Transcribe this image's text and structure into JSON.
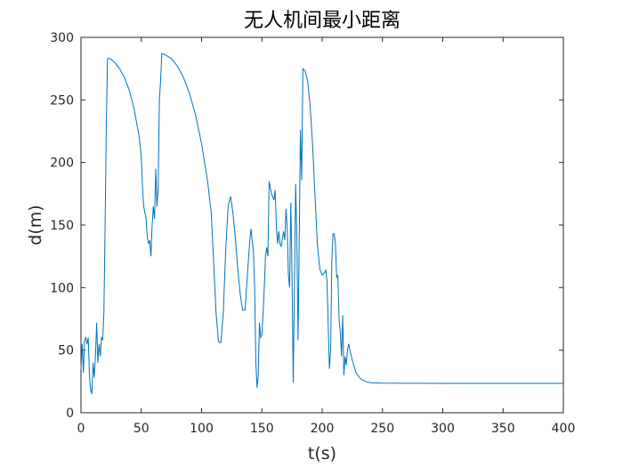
{
  "chart_data": {
    "type": "line",
    "title": "无人机间最小距离",
    "x_label": "t(s)",
    "y_label": "d(m)",
    "x": [
      0,
      1,
      2,
      3,
      4,
      5,
      6,
      7,
      8,
      9,
      10,
      11,
      12,
      13,
      14,
      15,
      16,
      17,
      18,
      19,
      20,
      21,
      22,
      24,
      28,
      32,
      36,
      40,
      44,
      48,
      50,
      51,
      52,
      54,
      55,
      56,
      57,
      58,
      59,
      60,
      61,
      62,
      63,
      64,
      65,
      66,
      67,
      70,
      75,
      80,
      85,
      90,
      95,
      100,
      105,
      108,
      110,
      112,
      114,
      116,
      118,
      120,
      122,
      124,
      126,
      128,
      130,
      132,
      134,
      136,
      138,
      140,
      141,
      143,
      144,
      145,
      146,
      147,
      148,
      149,
      150,
      151,
      152,
      153,
      154,
      155,
      156,
      158,
      160,
      161,
      162,
      163,
      164,
      165,
      166,
      168,
      169,
      170,
      171,
      172,
      173,
      174,
      175,
      176,
      177,
      178,
      179,
      180,
      181,
      182,
      183,
      184,
      186,
      188,
      190,
      192,
      194,
      196,
      198,
      200,
      202,
      203,
      204,
      205,
      206,
      207,
      208,
      209,
      210,
      211,
      212,
      213,
      214,
      215,
      216,
      217,
      218,
      219,
      220,
      221,
      222,
      223,
      225,
      228,
      232,
      236,
      240,
      250,
      300,
      400
    ],
    "series": [
      {
        "name": "d",
        "color": "#0072bd",
        "values": [
          35,
          55,
          32,
          58,
          60,
          55,
          60,
          30,
          18,
          15,
          40,
          28,
          45,
          72,
          40,
          55,
          45,
          60,
          58,
          80,
          150,
          230,
          283,
          283,
          280,
          275,
          268,
          258,
          243,
          222,
          205,
          180,
          165,
          155,
          140,
          135,
          138,
          125,
          150,
          165,
          155,
          195,
          165,
          180,
          250,
          265,
          287,
          286,
          283,
          277,
          268,
          255,
          238,
          215,
          185,
          160,
          120,
          80,
          57,
          56,
          80,
          130,
          165,
          173,
          160,
          140,
          115,
          95,
          82,
          82,
          110,
          138,
          147,
          128,
          100,
          40,
          20,
          30,
          72,
          60,
          62,
          80,
          100,
          125,
          132,
          125,
          185,
          175,
          170,
          178,
          150,
          135,
          145,
          135,
          133,
          145,
          138,
          163,
          148,
          110,
          100,
          168,
          110,
          24,
          100,
          183,
          140,
          58,
          140,
          226,
          186,
          275,
          273,
          265,
          245,
          215,
          175,
          135,
          115,
          110,
          112,
          114,
          105,
          70,
          35,
          50,
          120,
          143,
          143,
          135,
          108,
          110,
          75,
          65,
          45,
          78,
          30,
          45,
          38,
          50,
          55,
          50,
          42,
          32,
          27,
          25,
          24,
          23.6,
          23.5,
          23.5
        ]
      }
    ],
    "xlim": [
      0,
      400
    ],
    "ylim": [
      0,
      300
    ],
    "xticks": [
      0,
      50,
      100,
      150,
      200,
      250,
      300,
      350,
      400
    ],
    "yticks": [
      0,
      50,
      100,
      150,
      200,
      250,
      300
    ]
  }
}
